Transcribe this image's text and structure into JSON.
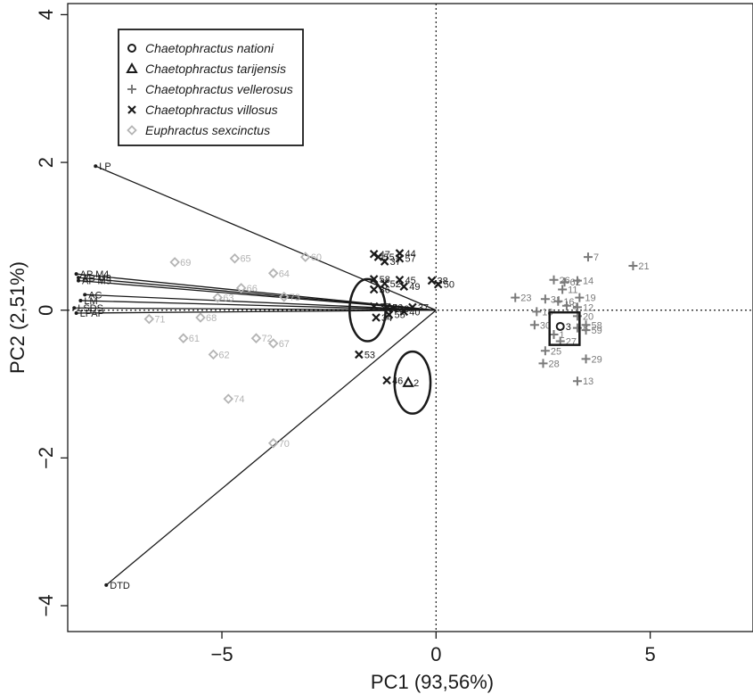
{
  "colors": {
    "dark": "#1a1a1a",
    "gray": "#7a7a7a",
    "light_gray": "#b4b4b4"
  },
  "chart_data": {
    "type": "scatter",
    "title": "",
    "xlabel": "PC1 (93,56%)",
    "ylabel": "PC2 (2,51%)",
    "xlim": [
      -8.6,
      7.4
    ],
    "ylim": [
      -4.35,
      4.15
    ],
    "x_ticks": [
      -5,
      0,
      5
    ],
    "y_ticks": [
      -4,
      -2,
      0,
      2,
      4
    ],
    "grid": false,
    "reference_lines": {
      "x": 0,
      "y": 0,
      "style": "dotted"
    },
    "legend": {
      "placement": "top-left",
      "entries": [
        {
          "label": "Chaetophractus nationi",
          "marker": "circle",
          "color": "#1a1a1a"
        },
        {
          "label": "Chaetophractus tarijensis",
          "marker": "triangle",
          "color": "#1a1a1a"
        },
        {
          "label": "Chaetophractus vellerosus",
          "marker": "plus",
          "color": "#7a7a7a"
        },
        {
          "label": "Chaetophractus villosus",
          "marker": "cross",
          "color": "#1a1a1a"
        },
        {
          "label": "Euphractus sexcinctus",
          "marker": "diamond",
          "color": "#b4b4b4"
        }
      ]
    },
    "series": [
      {
        "name": "Chaetophractus nationi",
        "marker": "circle",
        "points": [
          {
            "label": "3",
            "x": 2.9,
            "y": -0.22
          }
        ]
      },
      {
        "name": "Chaetophractus tarijensis",
        "marker": "triangle",
        "points": [
          {
            "label": "2",
            "x": -0.65,
            "y": -0.98
          }
        ]
      },
      {
        "name": "Chaetophractus vellerosus",
        "marker": "plus",
        "points": [
          {
            "label": "7",
            "x": 3.55,
            "y": 0.72
          },
          {
            "label": "21",
            "x": 4.6,
            "y": 0.6
          },
          {
            "label": "26",
            "x": 2.75,
            "y": 0.41
          },
          {
            "label": "14",
            "x": 3.3,
            "y": 0.4
          },
          {
            "label": "62",
            "x": 3.0,
            "y": 0.38
          },
          {
            "label": "11",
            "x": 2.95,
            "y": 0.28
          },
          {
            "label": "23",
            "x": 1.85,
            "y": 0.17
          },
          {
            "label": "19",
            "x": 3.35,
            "y": 0.17
          },
          {
            "label": "31",
            "x": 2.55,
            "y": 0.15
          },
          {
            "label": "16",
            "x": 2.85,
            "y": 0.12
          },
          {
            "label": "12",
            "x": 3.3,
            "y": 0.04
          },
          {
            "label": "9",
            "x": 3.05,
            "y": 0.06
          },
          {
            "label": "18",
            "x": 2.35,
            "y": -0.02
          },
          {
            "label": "20",
            "x": 3.3,
            "y": -0.08
          },
          {
            "label": "30",
            "x": 2.3,
            "y": -0.2
          },
          {
            "label": "58",
            "x": 3.5,
            "y": -0.2
          },
          {
            "label": "8",
            "x": 3.3,
            "y": -0.24
          },
          {
            "label": "59",
            "x": 3.5,
            "y": -0.27
          },
          {
            "label": "1",
            "x": 2.75,
            "y": -0.33
          },
          {
            "label": "27",
            "x": 2.9,
            "y": -0.42
          },
          {
            "label": "25",
            "x": 2.55,
            "y": -0.55
          },
          {
            "label": "29",
            "x": 3.5,
            "y": -0.66
          },
          {
            "label": "28",
            "x": 2.5,
            "y": -0.72
          },
          {
            "label": "13",
            "x": 3.3,
            "y": -0.96
          }
        ]
      },
      {
        "name": "Chaetophractus villosus",
        "marker": "cross",
        "points": [
          {
            "label": "47",
            "x": -1.45,
            "y": 0.76
          },
          {
            "label": "44",
            "x": -0.85,
            "y": 0.77
          },
          {
            "label": "57",
            "x": -0.85,
            "y": 0.7
          },
          {
            "label": "37",
            "x": -1.2,
            "y": 0.66
          },
          {
            "label": "55",
            "x": -1.35,
            "y": 0.72
          },
          {
            "label": "58",
            "x": -1.45,
            "y": 0.42
          },
          {
            "label": "45",
            "x": -0.85,
            "y": 0.41
          },
          {
            "label": "38",
            "x": -0.1,
            "y": 0.4
          },
          {
            "label": "50",
            "x": 0.05,
            "y": 0.35
          },
          {
            "label": "49",
            "x": -0.75,
            "y": 0.32
          },
          {
            "label": "36",
            "x": -1.45,
            "y": 0.28
          },
          {
            "label": "52",
            "x": -1.2,
            "y": 0.36
          },
          {
            "label": "56",
            "x": -1.15,
            "y": 0.04
          },
          {
            "label": "37",
            "x": -0.55,
            "y": 0.04
          },
          {
            "label": "40",
            "x": -0.75,
            "y": -0.02
          },
          {
            "label": "55",
            "x": -1.1,
            "y": -0.06
          },
          {
            "label": "34",
            "x": -1.4,
            "y": -0.1
          },
          {
            "label": "33",
            "x": -1.45,
            "y": 0.05
          },
          {
            "label": "39",
            "x": -1.0,
            "y": 0.02
          },
          {
            "label": "53",
            "x": -1.8,
            "y": -0.6
          },
          {
            "label": "46",
            "x": -1.15,
            "y": -0.95
          }
        ]
      },
      {
        "name": "Euphractus sexcinctus",
        "marker": "diamond",
        "points": [
          {
            "label": "69",
            "x": -6.1,
            "y": 0.65
          },
          {
            "label": "65",
            "x": -4.7,
            "y": 0.7
          },
          {
            "label": "60",
            "x": -3.05,
            "y": 0.72
          },
          {
            "label": "64",
            "x": -3.8,
            "y": 0.5
          },
          {
            "label": "66",
            "x": -4.55,
            "y": 0.3
          },
          {
            "label": "63",
            "x": -5.1,
            "y": 0.17
          },
          {
            "label": "73",
            "x": -3.55,
            "y": 0.18
          },
          {
            "label": "71",
            "x": -6.7,
            "y": -0.12
          },
          {
            "label": "68",
            "x": -5.5,
            "y": -0.1
          },
          {
            "label": "61",
            "x": -5.9,
            "y": -0.38
          },
          {
            "label": "72",
            "x": -4.2,
            "y": -0.38
          },
          {
            "label": "67",
            "x": -3.8,
            "y": -0.45
          },
          {
            "label": "62",
            "x": -5.2,
            "y": -0.6
          },
          {
            "label": "74",
            "x": -4.85,
            "y": -1.2
          },
          {
            "label": "70",
            "x": -3.8,
            "y": -1.8
          }
        ]
      }
    ],
    "loadings": [
      {
        "label": "LP",
        "x": -7.95,
        "y": 1.95
      },
      {
        "label": "AP M4",
        "x": -8.4,
        "y": 0.49
      },
      {
        "label": "AP M3",
        "x": -8.35,
        "y": 0.44
      },
      {
        "label": "AP M5",
        "x": -8.35,
        "y": 0.4
      },
      {
        "label": "AC",
        "x": -8.2,
        "y": 0.21
      },
      {
        "label": "LM",
        "x": -8.3,
        "y": 0.13
      },
      {
        "label": "LSDS",
        "x": -8.45,
        "y": 0.03
      },
      {
        "label": "LPAP",
        "x": -8.4,
        "y": -0.04
      },
      {
        "label": "DTD",
        "x": -7.7,
        "y": -3.72
      }
    ],
    "highlights": [
      {
        "shape": "circle",
        "cx": -1.6,
        "cy": 0.0,
        "r": 0.42
      },
      {
        "shape": "circle",
        "cx": -0.55,
        "cy": -0.98,
        "r": 0.42
      },
      {
        "shape": "square",
        "cx": 3.0,
        "cy": -0.25,
        "half_w": 0.35,
        "half_h": 0.22
      }
    ]
  }
}
